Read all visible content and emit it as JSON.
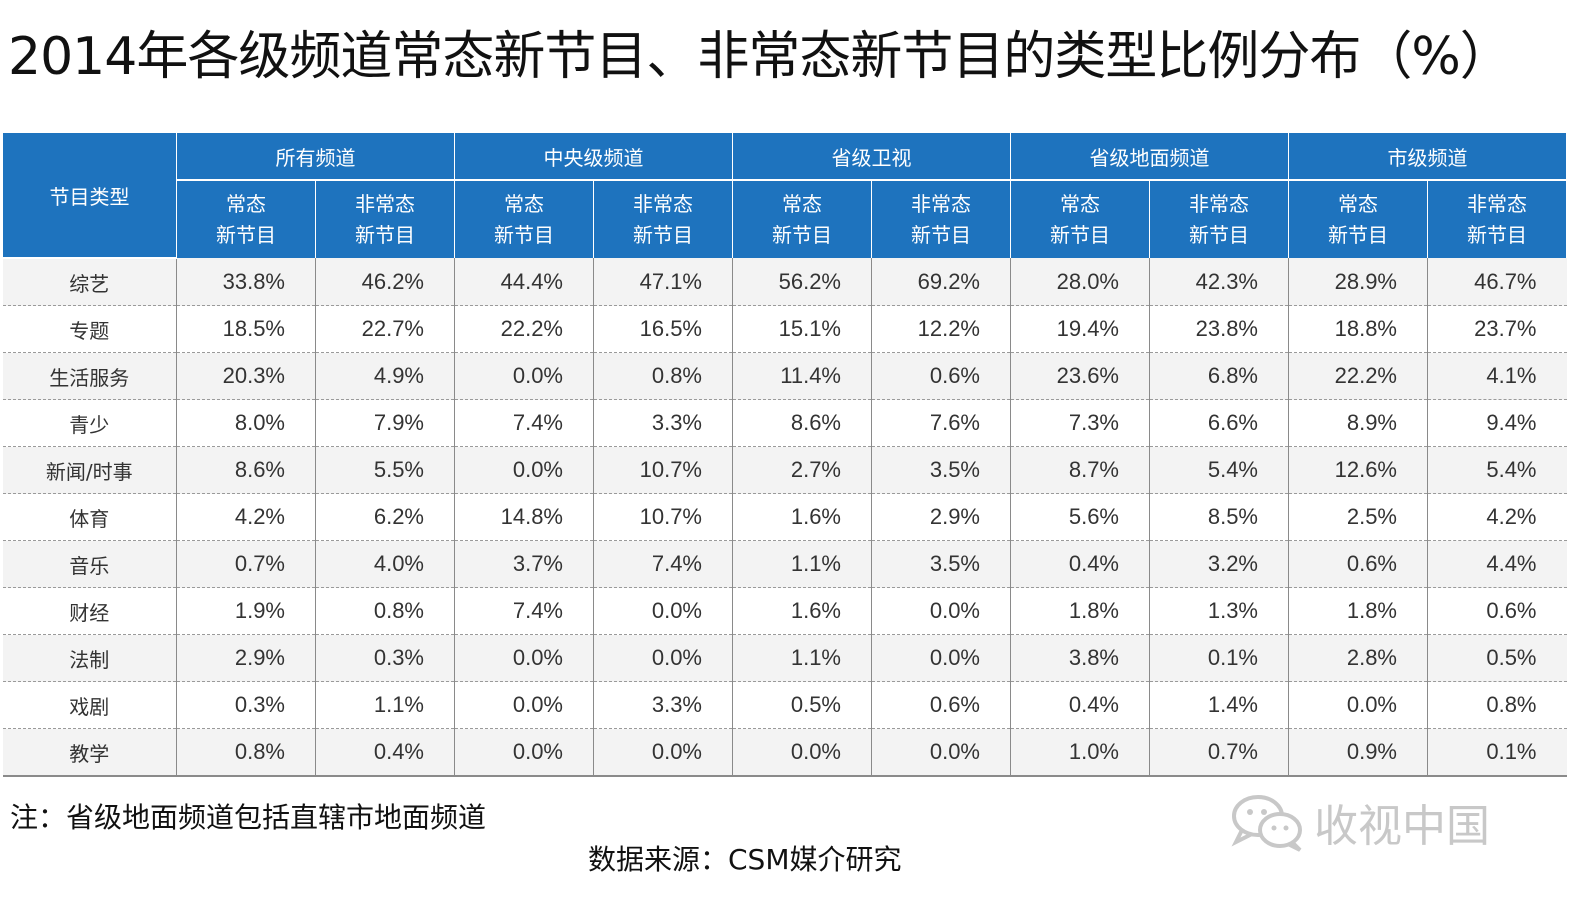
{
  "title": "2014年各级频道常态新节目、非常态新节目的类型比例分布（%）",
  "table": {
    "corner_label": "节目类型",
    "groups": [
      "所有频道",
      "中央级频道",
      "省级卫视",
      "省级地面频道",
      "市级频道"
    ],
    "sub_labels": {
      "regular_line1": "常态",
      "regular_line2": "新节目",
      "irregular_line1": "非常态",
      "irregular_line2": "新节目"
    },
    "rows": [
      {
        "category": "综艺",
        "values": [
          "33.8%",
          "46.2%",
          "44.4%",
          "47.1%",
          "56.2%",
          "69.2%",
          "28.0%",
          "42.3%",
          "28.9%",
          "46.7%"
        ]
      },
      {
        "category": "专题",
        "values": [
          "18.5%",
          "22.7%",
          "22.2%",
          "16.5%",
          "15.1%",
          "12.2%",
          "19.4%",
          "23.8%",
          "18.8%",
          "23.7%"
        ]
      },
      {
        "category": "生活服务",
        "values": [
          "20.3%",
          "4.9%",
          "0.0%",
          "0.8%",
          "11.4%",
          "0.6%",
          "23.6%",
          "6.8%",
          "22.2%",
          "4.1%"
        ]
      },
      {
        "category": "青少",
        "values": [
          "8.0%",
          "7.9%",
          "7.4%",
          "3.3%",
          "8.6%",
          "7.6%",
          "7.3%",
          "6.6%",
          "8.9%",
          "9.4%"
        ]
      },
      {
        "category": "新闻/时事",
        "values": [
          "8.6%",
          "5.5%",
          "0.0%",
          "10.7%",
          "2.7%",
          "3.5%",
          "8.7%",
          "5.4%",
          "12.6%",
          "5.4%"
        ]
      },
      {
        "category": "体育",
        "values": [
          "4.2%",
          "6.2%",
          "14.8%",
          "10.7%",
          "1.6%",
          "2.9%",
          "5.6%",
          "8.5%",
          "2.5%",
          "4.2%"
        ]
      },
      {
        "category": "音乐",
        "values": [
          "0.7%",
          "4.0%",
          "3.7%",
          "7.4%",
          "1.1%",
          "3.5%",
          "0.4%",
          "3.2%",
          "0.6%",
          "4.4%"
        ]
      },
      {
        "category": "财经",
        "values": [
          "1.9%",
          "0.8%",
          "7.4%",
          "0.0%",
          "1.6%",
          "0.0%",
          "1.8%",
          "1.3%",
          "1.8%",
          "0.6%"
        ]
      },
      {
        "category": "法制",
        "values": [
          "2.9%",
          "0.3%",
          "0.0%",
          "0.0%",
          "1.1%",
          "0.0%",
          "3.8%",
          "0.1%",
          "2.8%",
          "0.5%"
        ]
      },
      {
        "category": "戏剧",
        "values": [
          "0.3%",
          "1.1%",
          "0.0%",
          "3.3%",
          "0.5%",
          "0.6%",
          "0.4%",
          "1.4%",
          "0.0%",
          "0.8%"
        ]
      },
      {
        "category": "教学",
        "values": [
          "0.8%",
          "0.4%",
          "0.0%",
          "0.0%",
          "0.0%",
          "0.0%",
          "1.0%",
          "0.7%",
          "0.9%",
          "0.1%"
        ]
      }
    ]
  },
  "note": "注：省级地面频道包括直辖市地面频道",
  "source": "数据来源：CSM媒介研究",
  "watermark": {
    "text": "收视中国",
    "icon": "wechat-icon"
  },
  "colors": {
    "header_bg": "#1e73be",
    "header_text": "#ffffff",
    "stripe": "#f3f3f3"
  }
}
